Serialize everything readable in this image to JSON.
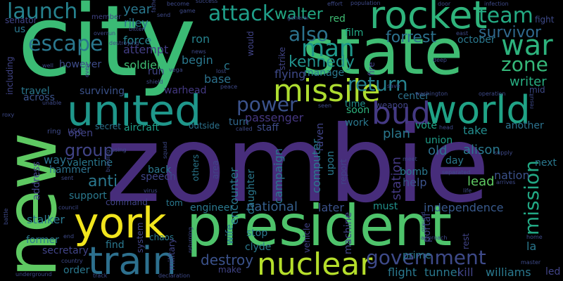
{
  "words": [
    {
      "text": "zombie",
      "color": "#472d7b"
    },
    {
      "text": "city",
      "color": "#3bbb75"
    },
    {
      "text": "new",
      "color": "#5ec962"
    },
    {
      "text": "president",
      "color": "#4ec36b"
    },
    {
      "text": "state",
      "color": "#3fbc73"
    },
    {
      "text": "rocket",
      "color": "#2fb47c"
    },
    {
      "text": "united",
      "color": "#1f978b"
    },
    {
      "text": "world",
      "color": "#20a386"
    },
    {
      "text": "york",
      "color": "#f1e51d"
    },
    {
      "text": "train",
      "color": "#2d708e"
    },
    {
      "text": "nuclear",
      "color": "#b5de2b"
    },
    {
      "text": "missile",
      "color": "#addc30"
    },
    {
      "text": "bud",
      "color": "#443983"
    },
    {
      "text": "war",
      "color": "#2db27d"
    },
    {
      "text": "man",
      "color": "#1f988b"
    },
    {
      "text": "launch",
      "color": "#26828e"
    },
    {
      "text": "attack",
      "color": "#1f9e89"
    },
    {
      "text": "team",
      "color": "#24aa83"
    },
    {
      "text": "also",
      "color": "#2c738e"
    },
    {
      "text": "escape",
      "color": "#2a788e"
    },
    {
      "text": "return",
      "color": "#26828e"
    },
    {
      "text": "zone",
      "color": "#35b779"
    },
    {
      "text": "survivor",
      "color": "#30698e"
    },
    {
      "text": "government",
      "color": "#3e4a89"
    },
    {
      "text": "mission",
      "color": "#22a884"
    },
    {
      "text": "power",
      "color": "#3b528b"
    },
    {
      "text": "kennedy",
      "color": "#21918c"
    },
    {
      "text": "walter",
      "color": "#22a884"
    },
    {
      "text": "forrest",
      "color": "#2c728e"
    },
    {
      "text": "group",
      "color": "#414487"
    },
    {
      "text": "writer",
      "color": "#27ad81"
    },
    {
      "text": "flying",
      "color": "#3e4989"
    },
    {
      "text": "passenger",
      "color": "#453781"
    },
    {
      "text": "destroy",
      "color": "#3b528b"
    },
    {
      "text": "national",
      "color": "#355f8d"
    },
    {
      "text": "anti",
      "color": "#2a788e"
    },
    {
      "text": "lead",
      "color": "#5ec962"
    },
    {
      "text": "old",
      "color": "#2d708e"
    },
    {
      "text": "alison",
      "color": "#2a788e"
    },
    {
      "text": "nation",
      "color": "#3b528b"
    },
    {
      "text": "independence",
      "color": "#38598c"
    },
    {
      "text": "later",
      "color": "#3b528b"
    },
    {
      "text": "must",
      "color": "#21918c"
    },
    {
      "text": "portal",
      "color": "#404688"
    },
    {
      "text": "station",
      "color": "#443983"
    },
    {
      "text": "help",
      "color": "#3b528b"
    },
    {
      "text": "vote",
      "color": "#20a386"
    },
    {
      "text": "another",
      "color": "#2c728e"
    },
    {
      "text": "take",
      "color": "#228c8d"
    },
    {
      "text": "plan",
      "color": "#2a788e"
    },
    {
      "text": "union",
      "color": "#1f9e89"
    },
    {
      "text": "soon",
      "color": "#2db27d"
    },
    {
      "text": "time",
      "color": "#21918c"
    },
    {
      "text": "year",
      "color": "#2a788e"
    },
    {
      "text": "riley",
      "color": "#2c728e"
    },
    {
      "text": "force",
      "color": "#26828e"
    },
    {
      "text": "attempt",
      "color": "#433e85"
    },
    {
      "text": "however",
      "color": "#3e4c8a"
    },
    {
      "text": "soldier",
      "color": "#3fbc73"
    },
    {
      "text": "travel",
      "color": "#2a788e"
    },
    {
      "text": "surviving",
      "color": "#3b528b"
    },
    {
      "text": "across",
      "color": "#3b528b"
    },
    {
      "text": "warhead",
      "color": "#443983"
    },
    {
      "text": "begin",
      "color": "#2a788e"
    },
    {
      "text": "base",
      "color": "#2c728e"
    },
    {
      "text": "ron",
      "color": "#26828e"
    },
    {
      "text": "red",
      "color": "#3fbc73"
    },
    {
      "text": "film",
      "color": "#22a884"
    },
    {
      "text": "october",
      "color": "#2a788e"
    },
    {
      "text": "manage",
      "color": "#2a788e"
    },
    {
      "text": "center",
      "color": "#2c728e"
    },
    {
      "text": "work",
      "color": "#2a788e"
    },
    {
      "text": "turn",
      "color": "#31688e"
    },
    {
      "text": "staff",
      "color": "#3e4c8a"
    },
    {
      "text": "secret",
      "color": "#2c728e"
    },
    {
      "text": "aircraft",
      "color": "#1f9e89"
    },
    {
      "text": "outside",
      "color": "#2c728e"
    },
    {
      "text": "open",
      "color": "#414487"
    },
    {
      "text": "way",
      "color": "#2c728e"
    },
    {
      "text": "valentine",
      "color": "#2a788e"
    },
    {
      "text": "hammer",
      "color": "#2c728e"
    },
    {
      "text": "back",
      "color": "#2a788e"
    },
    {
      "text": "speech",
      "color": "#404688"
    },
    {
      "text": "others",
      "color": "#2a788e"
    },
    {
      "text": "area",
      "color": "#414487"
    },
    {
      "text": "encounter",
      "color": "#2a788e"
    },
    {
      "text": "daughter",
      "color": "#2a788e"
    },
    {
      "text": "campaign",
      "color": "#2a788e"
    },
    {
      "text": "computer",
      "color": "#2a788e"
    },
    {
      "text": "raven",
      "color": "#414487"
    },
    {
      "text": "report",
      "color": "#414487"
    },
    {
      "text": "upon",
      "color": "#2a788e"
    },
    {
      "text": "bomb",
      "color": "#2a788e"
    },
    {
      "text": "day",
      "color": "#2a788e"
    },
    {
      "text": "next",
      "color": "#2a788e"
    },
    {
      "text": "use",
      "color": "#414487"
    },
    {
      "text": "support",
      "color": "#2a788e"
    },
    {
      "text": "command",
      "color": "#414487"
    },
    {
      "text": "tom",
      "color": "#2a788e"
    },
    {
      "text": "engineer",
      "color": "#2a788e"
    },
    {
      "text": "stalker",
      "color": "#2a788e"
    },
    {
      "text": "former",
      "color": "#2a788e"
    },
    {
      "text": "secretary",
      "color": "#414487"
    },
    {
      "text": "order",
      "color": "#2a788e"
    },
    {
      "text": "find",
      "color": "#2a788e"
    },
    {
      "text": "system",
      "color": "#414487"
    },
    {
      "text": "chaos",
      "color": "#2a788e"
    },
    {
      "text": "military",
      "color": "#414487"
    },
    {
      "text": "wife",
      "color": "#2a788e"
    },
    {
      "text": "stop",
      "color": "#2a788e"
    },
    {
      "text": "clyde",
      "color": "#2a788e"
    },
    {
      "text": "make",
      "color": "#414487"
    },
    {
      "text": "machine",
      "color": "#414487"
    },
    {
      "text": "vehicle",
      "color": "#414487"
    },
    {
      "text": "prime",
      "color": "#2a788e"
    },
    {
      "text": "flight",
      "color": "#2a788e"
    },
    {
      "text": "tunnel",
      "color": "#2a788e"
    },
    {
      "text": "kill",
      "color": "#414487"
    },
    {
      "text": "williams",
      "color": "#2a788e"
    },
    {
      "text": "led",
      "color": "#414487"
    },
    {
      "text": "la",
      "color": "#2a788e"
    },
    {
      "text": "rest",
      "color": "#414487"
    },
    {
      "text": "address",
      "color": "#414487"
    },
    {
      "text": "including",
      "color": "#414487"
    },
    {
      "text": "us",
      "color": "#2a788e"
    },
    {
      "text": "member",
      "color": "#414487"
    },
    {
      "text": "senator",
      "color": "#414487"
    },
    {
      "text": "would",
      "color": "#414487"
    },
    {
      "text": "strike",
      "color": "#414487"
    },
    {
      "text": "fire",
      "color": "#414487"
    },
    {
      "text": "weapon",
      "color": "#414487"
    },
    {
      "text": "run",
      "color": "#414487"
    },
    {
      "text": "c",
      "color": "#2a788e"
    },
    {
      "text": "destroying",
      "color": "#3e4a89"
    },
    {
      "text": "overrun",
      "color": "#3e4a89"
    },
    {
      "text": "bitten",
      "color": "#3e4a89"
    },
    {
      "text": "send",
      "color": "#3e4a89"
    },
    {
      "text": "game",
      "color": "#3e4a89"
    },
    {
      "text": "success",
      "color": "#3e4a89"
    },
    {
      "text": "become",
      "color": "#3e4a89"
    },
    {
      "text": "effort",
      "color": "#3e4a89"
    },
    {
      "text": "population",
      "color": "#3e4a89"
    },
    {
      "text": "door",
      "color": "#3e4a89"
    },
    {
      "text": "infection",
      "color": "#3e4a89"
    },
    {
      "text": "fight",
      "color": "#3e4a89"
    },
    {
      "text": "general",
      "color": "#3e4a89"
    },
    {
      "text": "news",
      "color": "#3e4a89"
    },
    {
      "text": "vega",
      "color": "#3e4a89"
    },
    {
      "text": "lost",
      "color": "#3e4a89"
    },
    {
      "text": "peace",
      "color": "#3e4a89"
    },
    {
      "text": "save",
      "color": "#3e4a89"
    },
    {
      "text": "deep",
      "color": "#3e4a89"
    },
    {
      "text": "washington",
      "color": "#3e4a89"
    },
    {
      "text": "operation",
      "color": "#3e4a89"
    },
    {
      "text": "result",
      "color": "#3e4a89"
    },
    {
      "text": "mid",
      "color": "#3e4a89"
    },
    {
      "text": "east",
      "color": "#3e4a89"
    },
    {
      "text": "head",
      "color": "#3e4a89"
    },
    {
      "text": "called",
      "color": "#3e4a89"
    },
    {
      "text": "supply",
      "color": "#3e4a89"
    },
    {
      "text": "meet",
      "color": "#3e4a89"
    },
    {
      "text": "arrives",
      "color": "#3e4a89"
    },
    {
      "text": "separated",
      "color": "#3e4a89"
    },
    {
      "text": "life",
      "color": "#3e4a89"
    },
    {
      "text": "using",
      "color": "#3e4a89"
    },
    {
      "text": "squad",
      "color": "#3e4a89"
    },
    {
      "text": "building",
      "color": "#3e4a89"
    },
    {
      "text": "virus",
      "color": "#3e4a89"
    },
    {
      "text": "ring",
      "color": "#3e4a89"
    },
    {
      "text": "sent",
      "color": "#3e4a89"
    },
    {
      "text": "council",
      "color": "#3e4a89"
    },
    {
      "text": "battle",
      "color": "#3e4a89"
    },
    {
      "text": "end",
      "color": "#3e4a89"
    },
    {
      "text": "country",
      "color": "#3e4a89"
    },
    {
      "text": "underground",
      "color": "#3e4a89"
    },
    {
      "text": "track",
      "color": "#3e4a89"
    },
    {
      "text": "declaration",
      "color": "#3e4a89"
    },
    {
      "text": "returning",
      "color": "#3e4a89"
    },
    {
      "text": "approach",
      "color": "#3e4a89"
    },
    {
      "text": "ground",
      "color": "#3e4a89"
    },
    {
      "text": "home",
      "color": "#3e4a89"
    },
    {
      "text": "master",
      "color": "#3e4a89"
    },
    {
      "text": "roxy",
      "color": "#3e4a89"
    },
    {
      "text": "shield",
      "color": "#3e4a89"
    },
    {
      "text": "even",
      "color": "#3e4a89"
    },
    {
      "text": "father",
      "color": "#3e4a89"
    },
    {
      "text": "seen",
      "color": "#3e4a89"
    },
    {
      "text": "well",
      "color": "#3e4a89"
    },
    {
      "text": "unable",
      "color": "#3e4a89"
    }
  ]
}
